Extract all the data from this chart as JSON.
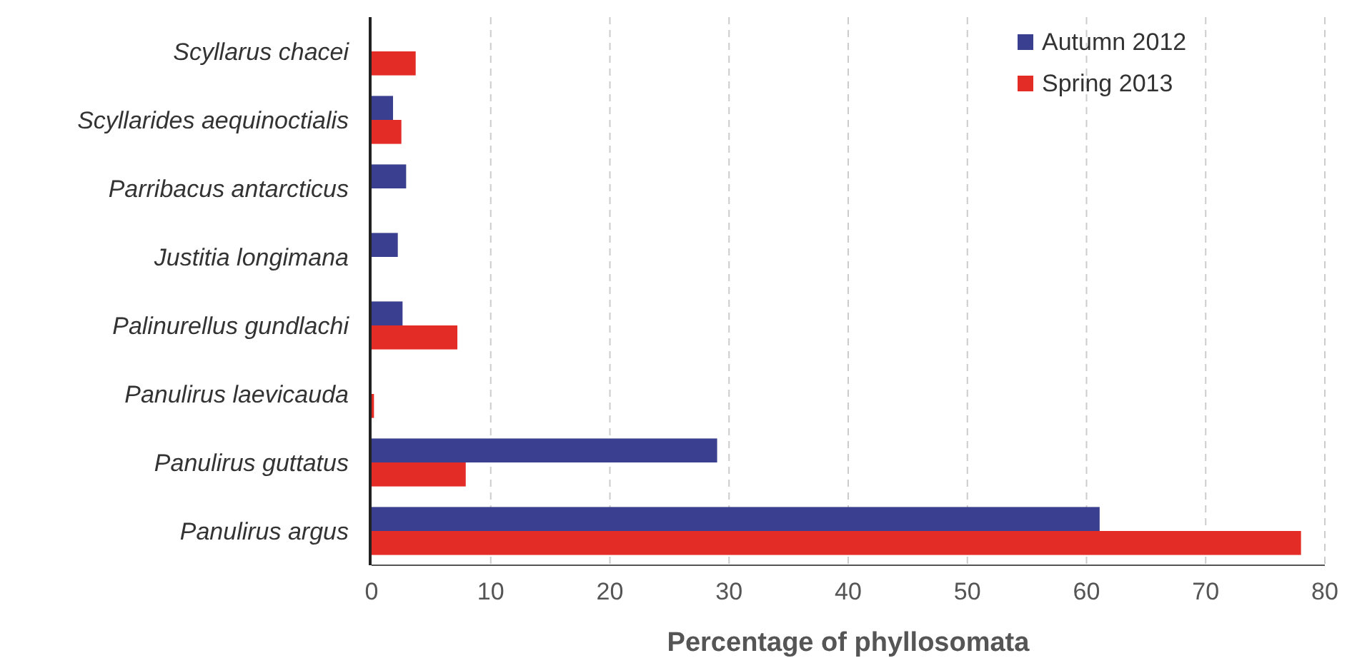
{
  "chart_data": {
    "type": "bar",
    "orientation": "horizontal",
    "xlabel": "Percentage of phyllosomata",
    "categories": [
      "Scyllarus chacei",
      "Scyllarides aequinoctialis",
      "Parribacus antarcticus",
      "Justitia longimana",
      "Palinurellus gundlachi",
      "Panulirus laevicauda",
      "Panulirus guttatus",
      "Panulirus argus"
    ],
    "series": [
      {
        "name": "Autumn 2012",
        "color": "#3b3f8f",
        "values": [
          null,
          1.8,
          2.9,
          2.2,
          2.6,
          null,
          29,
          61.1
        ]
      },
      {
        "name": "Spring 2013",
        "color": "#e32c26",
        "values": [
          3.7,
          2.5,
          null,
          null,
          7.2,
          0.2,
          7.9,
          78
        ]
      }
    ],
    "xlim": [
      0,
      80
    ],
    "xticks": [
      0,
      10,
      20,
      30,
      40,
      50,
      60,
      70,
      80
    ],
    "grid": "x",
    "legend": "top right"
  }
}
